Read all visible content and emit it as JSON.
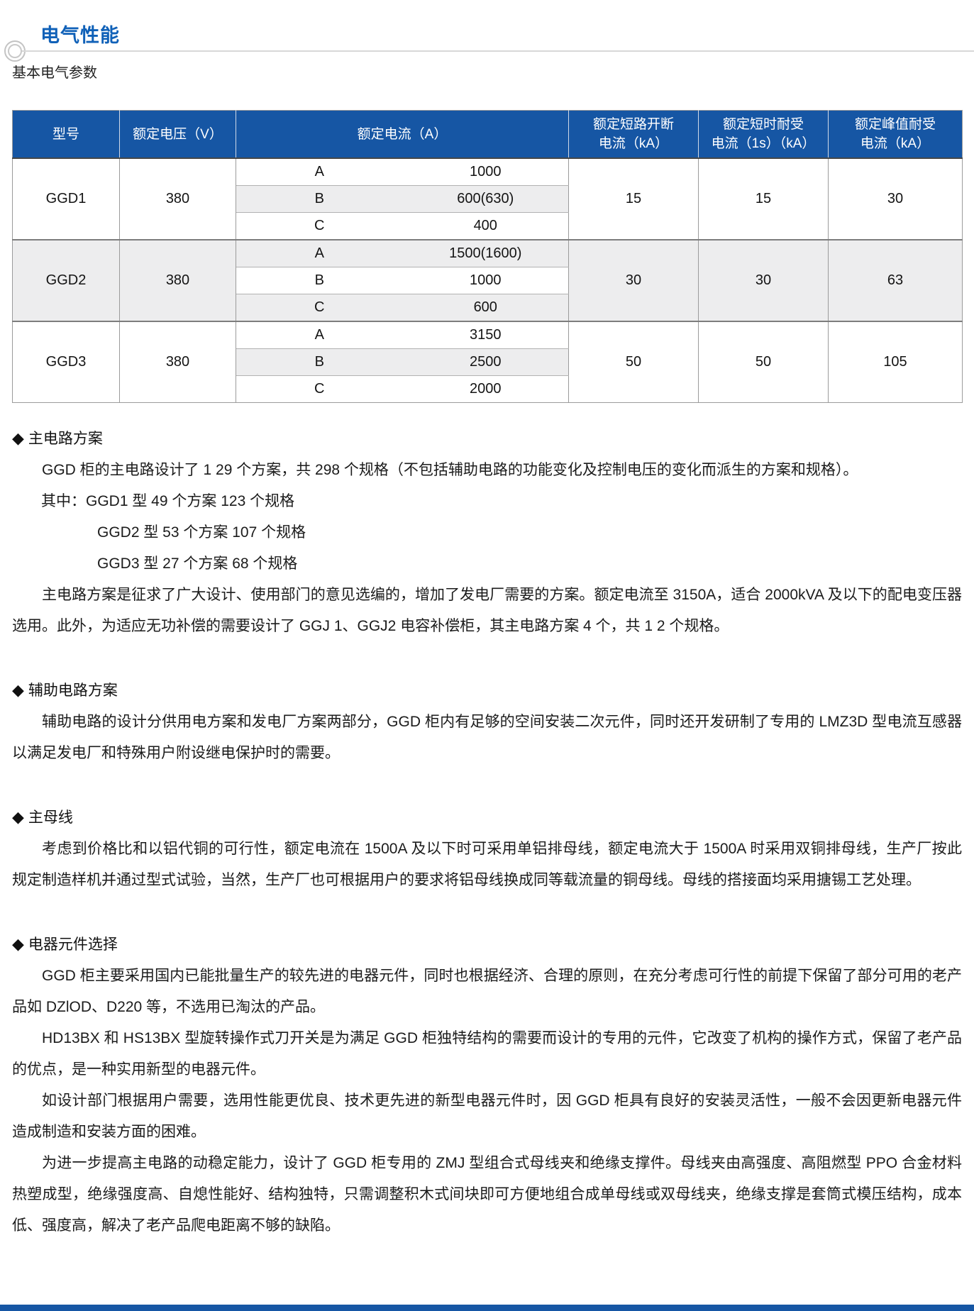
{
  "page": {
    "title": "电气性能",
    "subtitle": "基本电气参数",
    "bullet_char": "◆",
    "colors": {
      "table_header_blue": "#1656a4",
      "title_blue": "#1061b8",
      "row_shade_gray": "#ededee",
      "footer_blue": "#1656a4"
    }
  },
  "table": {
    "headers": [
      "型号",
      "额定电压（V）",
      "额定电流（A）",
      "额定短路开断\n电流（kA）",
      "额定短时耐受\n电流（1s）（kA）",
      "额定峰值耐受\n电流（kA）"
    ],
    "groups": [
      {
        "model": "GGD1",
        "voltage": "380",
        "rows": [
          {
            "letter": "A",
            "current": "1000"
          },
          {
            "letter": "B",
            "current": "600(630)"
          },
          {
            "letter": "C",
            "current": "400"
          }
        ],
        "breaking": "15",
        "short_time": "15",
        "peak": "30"
      },
      {
        "model": "GGD2",
        "voltage": "380",
        "rows": [
          {
            "letter": "A",
            "current": "1500(1600)"
          },
          {
            "letter": "B",
            "current": "1000"
          },
          {
            "letter": "C",
            "current": "600"
          }
        ],
        "breaking": "30",
        "short_time": "30",
        "peak": "63"
      },
      {
        "model": "GGD3",
        "voltage": "380",
        "rows": [
          {
            "letter": "A",
            "current": "3150"
          },
          {
            "letter": "B",
            "current": "2500"
          },
          {
            "letter": "C",
            "current": "2000"
          }
        ],
        "breaking": "50",
        "short_time": "50",
        "peak": "105"
      }
    ]
  },
  "sections": [
    {
      "heading": "主电路方案",
      "blocks": [
        {
          "type": "p",
          "text": "GGD 柜的主电路设计了 1 29 个方案，共 298 个规格（不包括辅助电路的功能变化及控制电压的变化而派生的方案和规格）。"
        },
        {
          "type": "line",
          "indent": 1,
          "text": "其中：GGD1 型 49 个方案  123 个规格"
        },
        {
          "type": "line",
          "indent": 2,
          "text": "GGD2 型 53 个方案  107 个规格"
        },
        {
          "type": "line",
          "indent": 2,
          "text": "GGD3 型  27 个方案  68 个规格"
        },
        {
          "type": "p",
          "text": "主电路方案是征求了广大设计、使用部门的意见选编的，增加了发电厂需要的方案。额定电流至 3150A，适合 2000kVA 及以下的配电变压器选用。此外，为适应无功补偿的需要设计了 GGJ 1、GGJ2 电容补偿柜，其主电路方案 4 个，共 1 2 个规格。"
        }
      ]
    },
    {
      "heading": "辅助电路方案",
      "blocks": [
        {
          "type": "p",
          "text": "辅助电路的设计分供用电方案和发电厂方案两部分，GGD 柜内有足够的空间安装二次元件，同时还开发研制了专用的 LMZ3D 型电流互感器以满足发电厂和特殊用户附设继电保护时的需要。"
        }
      ]
    },
    {
      "heading": "主母线",
      "blocks": [
        {
          "type": "p",
          "text": "考虑到价格比和以铝代铜的可行性，额定电流在 1500A 及以下时可采用单铝排母线，额定电流大于 1500A 时采用双铜排母线，生产厂按此规定制造样机并通过型式试验，当然，生产厂也可根据用户的要求将铝母线换成同等载流量的铜母线。母线的搭接面均采用搪锡工艺处理。"
        }
      ]
    },
    {
      "heading": "电器元件选择",
      "blocks": [
        {
          "type": "p",
          "text": "GGD 柜主要采用国内已能批量生产的较先进的电器元件，同时也根据经济、合理的原则，在充分考虑可行性的前提下保留了部分可用的老产品如 DZlOD、D220 等，不选用已淘汰的产品。"
        },
        {
          "type": "p",
          "text": "HD13BX 和 HS13BX 型旋转操作式刀开关是为满足 GGD 柜独特结构的需要而设计的专用的元件，它改变了机构的操作方式，保留了老产品的优点，是一种实用新型的电器元件。"
        },
        {
          "type": "p",
          "text": "如设计部门根据用户需要，选用性能更优良、技术更先进的新型电器元件时，因 GGD 柜具有良好的安装灵活性，一般不会因更新电器元件造成制造和安装方面的困难。"
        },
        {
          "type": "p",
          "text": "为进一步提高主电路的动稳定能力，设计了 GGD 柜专用的 ZMJ 型组合式母线夹和绝缘支撑件。母线夹由高强度、高阻燃型 PPO 合金材料热塑成型，绝缘强度高、自熄性能好、结构独特，只需调整积木式间块即可方便地组合成单母线或双母线夹，绝缘支撑是套筒式模压结构，成本低、强度高，解决了老产品爬电距离不够的缺陷。"
        }
      ]
    }
  ]
}
